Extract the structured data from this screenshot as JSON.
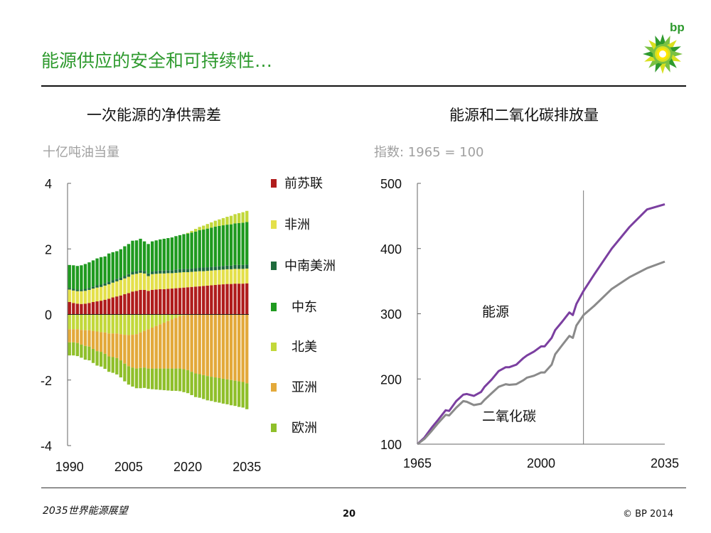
{
  "page": {
    "title": "能源供应的安全和可持续性…",
    "footer_left": "2035世界能源展望",
    "page_number": "20",
    "copyright": "© BP 2014",
    "logo_text": "bp"
  },
  "colors": {
    "title_green": "#2e9a2e",
    "energy_line": "#7b3fa0",
    "co2_line": "#8a8a8a"
  },
  "chart_data": [
    {
      "type": "bar",
      "stacked": true,
      "title": "一次能源的净供需差",
      "ylabel": "十亿吨油当量",
      "ylim": [
        -4,
        4
      ],
      "yticks": [
        "4",
        "2",
        "0",
        "-2",
        "-4"
      ],
      "xticks": [
        "1990",
        "2005",
        "2020",
        "2035"
      ],
      "x_start": 1990,
      "x_end": 2035,
      "series": [
        {
          "name": "前苏联",
          "color": "#b01c1c",
          "sign": 1,
          "values": [
            0.38,
            0.35,
            0.33,
            0.32,
            0.33,
            0.35,
            0.38,
            0.4,
            0.42,
            0.45,
            0.48,
            0.52,
            0.55,
            0.58,
            0.62,
            0.65,
            0.7,
            0.72,
            0.75,
            0.75,
            0.72,
            0.75,
            0.76,
            0.77,
            0.77,
            0.78,
            0.79,
            0.8,
            0.81,
            0.82,
            0.83,
            0.84,
            0.85,
            0.86,
            0.87,
            0.88,
            0.89,
            0.9,
            0.91,
            0.92,
            0.93,
            0.93,
            0.94,
            0.94,
            0.94,
            0.95
          ]
        },
        {
          "name": "非洲",
          "color": "#e4e04a",
          "sign": 1,
          "values": [
            0.38,
            0.38,
            0.38,
            0.39,
            0.39,
            0.4,
            0.41,
            0.42,
            0.42,
            0.43,
            0.44,
            0.45,
            0.46,
            0.47,
            0.48,
            0.5,
            0.52,
            0.52,
            0.52,
            0.5,
            0.45,
            0.48,
            0.48,
            0.48,
            0.48,
            0.48,
            0.47,
            0.47,
            0.47,
            0.47,
            0.46,
            0.46,
            0.46,
            0.46,
            0.45,
            0.45,
            0.45,
            0.45,
            0.45,
            0.45,
            0.45,
            0.45,
            0.45,
            0.45,
            0.45,
            0.45
          ]
        },
        {
          "name": "中南美洲",
          "color": "#1e6b3c",
          "sign": 1,
          "values": [
            0.05,
            0.05,
            0.05,
            0.05,
            0.06,
            0.06,
            0.06,
            0.07,
            0.07,
            0.07,
            0.08,
            0.08,
            0.08,
            0.08,
            0.08,
            0.08,
            0.08,
            0.08,
            0.08,
            0.08,
            0.08,
            0.08,
            0.09,
            0.09,
            0.09,
            0.09,
            0.09,
            0.1,
            0.1,
            0.1,
            0.1,
            0.1,
            0.1,
            0.11,
            0.11,
            0.11,
            0.11,
            0.11,
            0.11,
            0.11,
            0.11,
            0.11,
            0.12,
            0.12,
            0.12,
            0.12
          ]
        },
        {
          "name": "中东",
          "color": "#1f9a1f",
          "sign": 1,
          "values": [
            0.7,
            0.72,
            0.72,
            0.74,
            0.76,
            0.78,
            0.8,
            0.82,
            0.84,
            0.82,
            0.86,
            0.85,
            0.84,
            0.86,
            0.9,
            0.92,
            0.95,
            0.94,
            0.96,
            0.9,
            0.9,
            0.92,
            0.93,
            0.95,
            0.97,
            0.98,
            1.0,
            1.02,
            1.04,
            1.06,
            1.08,
            1.1,
            1.12,
            1.14,
            1.16,
            1.18,
            1.2,
            1.22,
            1.23,
            1.24,
            1.25,
            1.26,
            1.27,
            1.28,
            1.29,
            1.3
          ]
        },
        {
          "name": "北美",
          "color": "#c2d83a",
          "sign": -1,
          "values": [
            -0.45,
            -0.45,
            -0.45,
            -0.47,
            -0.48,
            -0.48,
            -0.5,
            -0.52,
            -0.54,
            -0.55,
            -0.58,
            -0.58,
            -0.58,
            -0.6,
            -0.62,
            -0.63,
            -0.62,
            -0.6,
            -0.55,
            -0.5,
            -0.45,
            -0.4,
            -0.35,
            -0.3,
            -0.25,
            -0.2,
            -0.15,
            -0.1,
            -0.05,
            -0.02,
            0.02,
            0.05,
            0.08,
            0.1,
            0.12,
            0.14,
            0.16,
            0.18,
            0.2,
            0.22,
            0.24,
            0.26,
            0.28,
            0.3,
            0.32,
            0.34
          ]
        },
        {
          "name": "亚洲",
          "color": "#e3a93a",
          "sign": -1,
          "values": [
            -0.4,
            -0.4,
            -0.42,
            -0.45,
            -0.48,
            -0.5,
            -0.55,
            -0.6,
            -0.6,
            -0.65,
            -0.7,
            -0.72,
            -0.75,
            -0.8,
            -0.88,
            -0.95,
            -1.0,
            -1.05,
            -1.08,
            -1.12,
            -1.2,
            -1.25,
            -1.3,
            -1.35,
            -1.4,
            -1.45,
            -1.5,
            -1.55,
            -1.6,
            -1.65,
            -1.7,
            -1.75,
            -1.8,
            -1.82,
            -1.85,
            -1.88,
            -1.9,
            -1.92,
            -1.94,
            -1.96,
            -1.98,
            -2.0,
            -2.02,
            -2.04,
            -2.06,
            -2.1
          ]
        },
        {
          "name": "欧洲",
          "color": "#8fbf2a",
          "sign": -1,
          "values": [
            -0.4,
            -0.4,
            -0.4,
            -0.4,
            -0.42,
            -0.42,
            -0.43,
            -0.44,
            -0.45,
            -0.46,
            -0.47,
            -0.48,
            -0.5,
            -0.52,
            -0.54,
            -0.56,
            -0.58,
            -0.6,
            -0.62,
            -0.62,
            -0.62,
            -0.63,
            -0.64,
            -0.65,
            -0.66,
            -0.67,
            -0.68,
            -0.68,
            -0.69,
            -0.7,
            -0.7,
            -0.71,
            -0.72,
            -0.72,
            -0.73,
            -0.74,
            -0.74,
            -0.75,
            -0.75,
            -0.76,
            -0.76,
            -0.77,
            -0.77,
            -0.78,
            -0.78,
            -0.79
          ]
        }
      ]
    },
    {
      "type": "line",
      "title": "能源和二氧化碳排放量",
      "ylabel": "指数: 1965 = 100",
      "ylim": [
        100,
        500
      ],
      "xlim": [
        1965,
        2035
      ],
      "yticks": [
        "500",
        "400",
        "300",
        "200",
        "100"
      ],
      "xticks": [
        "1965",
        "2000",
        "2035"
      ],
      "divider_year": 2012,
      "series": [
        {
          "name": "能源",
          "color": "#7b3fa0",
          "x": [
            1965,
            1967,
            1969,
            1971,
            1973,
            1974,
            1976,
            1978,
            1979,
            1981,
            1983,
            1984,
            1986,
            1988,
            1990,
            1991,
            1993,
            1995,
            1996,
            1998,
            2000,
            2001,
            2003,
            2004,
            2006,
            2008,
            2009,
            2010,
            2012,
            2015,
            2020,
            2025,
            2030,
            2035
          ],
          "values": [
            100,
            110,
            125,
            138,
            152,
            151,
            166,
            176,
            177,
            174,
            180,
            188,
            199,
            212,
            218,
            218,
            222,
            232,
            236,
            242,
            250,
            250,
            263,
            275,
            288,
            302,
            298,
            315,
            335,
            360,
            400,
            433,
            460,
            468
          ]
        },
        {
          "name": "二氧化碳",
          "color": "#8a8a8a",
          "x": [
            1965,
            1967,
            1969,
            1971,
            1973,
            1974,
            1976,
            1978,
            1979,
            1981,
            1983,
            1984,
            1986,
            1988,
            1990,
            1991,
            1993,
            1995,
            1996,
            1998,
            2000,
            2001,
            2003,
            2004,
            2006,
            2008,
            2009,
            2010,
            2012,
            2015,
            2020,
            2025,
            2030,
            2035
          ],
          "values": [
            100,
            108,
            120,
            133,
            145,
            144,
            156,
            166,
            165,
            160,
            162,
            168,
            178,
            188,
            192,
            191,
            192,
            198,
            202,
            205,
            210,
            210,
            222,
            238,
            252,
            266,
            263,
            282,
            298,
            312,
            338,
            356,
            370,
            380
          ]
        }
      ]
    }
  ]
}
